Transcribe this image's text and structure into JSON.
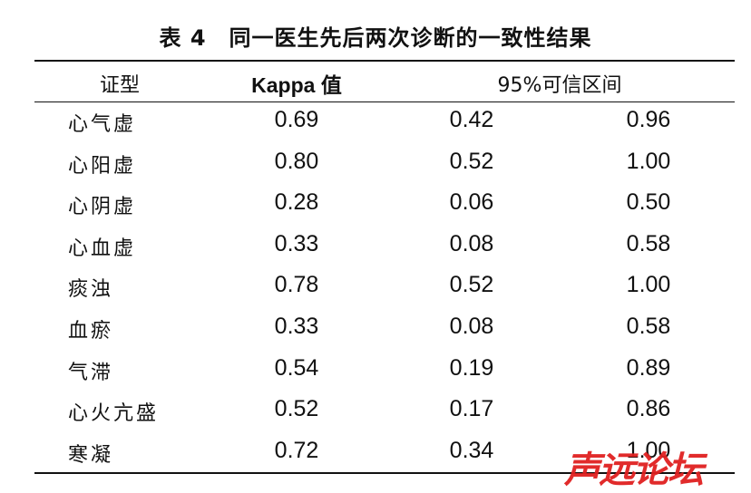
{
  "table": {
    "title": "表 4　同一医生先后两次诊断的一致性结果",
    "header": [
      "证型",
      "Kappa 值",
      "95%可信区间"
    ],
    "rows": [
      [
        "心气虚",
        "0.69",
        "0.42",
        "0.96"
      ],
      [
        "心阳虚",
        "0.80",
        "0.52",
        "1.00"
      ],
      [
        "心阴虚",
        "0.28",
        "0.06",
        "0.50"
      ],
      [
        "心血虚",
        "0.33",
        "0.08",
        "0.58"
      ],
      [
        "痰浊",
        "0.78",
        "0.52",
        "1.00"
      ],
      [
        "血瘀",
        "0.33",
        "0.08",
        "0.58"
      ],
      [
        "气滞",
        "0.54",
        "0.19",
        "0.89"
      ],
      [
        "心火亢盛",
        "0.52",
        "0.17",
        "0.86"
      ],
      [
        "寒凝",
        "0.72",
        "0.34",
        "1.00"
      ]
    ]
  },
  "watermark": "声远论坛"
}
